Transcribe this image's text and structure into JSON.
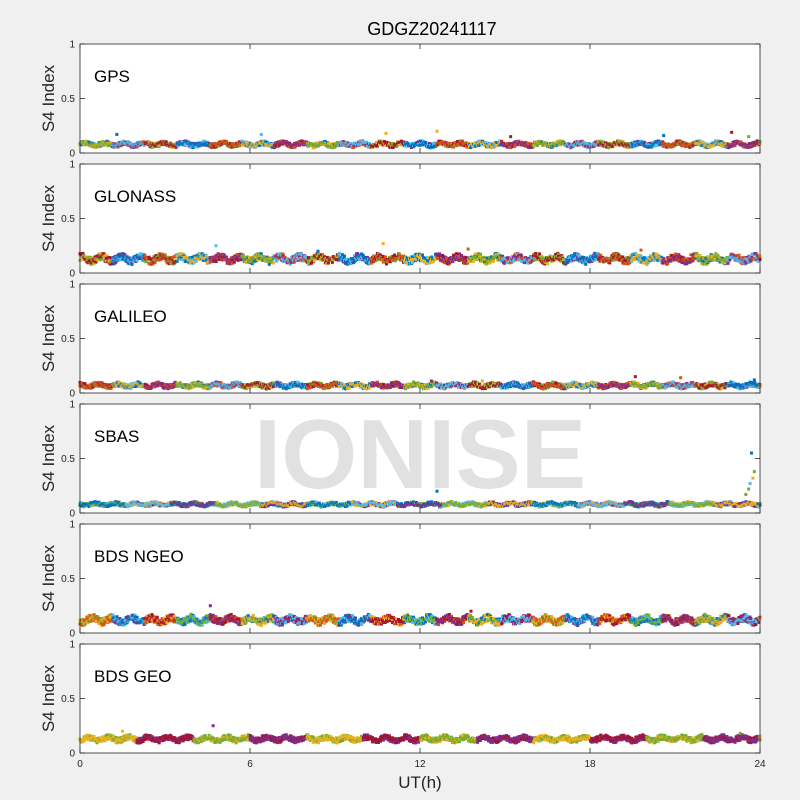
{
  "figure": {
    "title": "GDGZ20241117",
    "xlabel": "UT(h)",
    "watermark": "IONISE"
  },
  "chart_data": [
    {
      "type": "scatter",
      "panel": "GPS",
      "ylabel": "S4 Index",
      "xlim": [
        0,
        24
      ],
      "ylim": [
        0,
        1
      ],
      "xticks": [
        0,
        6,
        12,
        18,
        24
      ],
      "yticks": [
        0,
        0.5,
        1
      ],
      "grid": false,
      "baseline": 0.08,
      "spread": 0.025,
      "series_colors": [
        "#0072BD",
        "#D95319",
        "#EDB120",
        "#7E2F8E",
        "#77AC30",
        "#4DBEEE",
        "#A2142F"
      ],
      "outliers": [
        [
          1.3,
          0.17
        ],
        [
          6.4,
          0.17
        ],
        [
          10.8,
          0.18
        ],
        [
          12.6,
          0.2
        ],
        [
          15.2,
          0.15
        ],
        [
          20.6,
          0.16
        ],
        [
          23.0,
          0.19
        ],
        [
          23.6,
          0.15
        ]
      ]
    },
    {
      "type": "scatter",
      "panel": "GLONASS",
      "ylabel": "S4 Index",
      "xlim": [
        0,
        24
      ],
      "ylim": [
        0,
        1
      ],
      "xticks": [
        0,
        6,
        12,
        18,
        24
      ],
      "yticks": [
        0,
        0.5,
        1
      ],
      "grid": false,
      "baseline": 0.13,
      "spread": 0.04,
      "series_colors": [
        "#0072BD",
        "#D95319",
        "#EDB120",
        "#7E2F8E",
        "#77AC30",
        "#4DBEEE",
        "#A2142F"
      ],
      "outliers": [
        [
          4.8,
          0.25
        ],
        [
          10.7,
          0.27
        ],
        [
          13.7,
          0.22
        ],
        [
          8.4,
          0.2
        ],
        [
          19.8,
          0.21
        ]
      ]
    },
    {
      "type": "scatter",
      "panel": "GALILEO",
      "ylabel": "S4 Index",
      "xlim": [
        0,
        24
      ],
      "ylim": [
        0,
        1
      ],
      "xticks": [
        0,
        6,
        12,
        18,
        24
      ],
      "yticks": [
        0,
        0.5,
        1
      ],
      "grid": false,
      "baseline": 0.07,
      "spread": 0.025,
      "series_colors": [
        "#0072BD",
        "#D95319",
        "#EDB120",
        "#7E2F8E",
        "#77AC30",
        "#4DBEEE",
        "#A2142F"
      ],
      "outliers": [
        [
          19.6,
          0.15
        ],
        [
          21.2,
          0.14
        ],
        [
          23.8,
          0.12
        ],
        [
          12.4,
          0.11
        ],
        [
          14.2,
          0.11
        ]
      ]
    },
    {
      "type": "scatter",
      "panel": "SBAS",
      "ylabel": "S4 Index",
      "xlim": [
        0,
        24
      ],
      "ylim": [
        0,
        1
      ],
      "xticks": [
        0,
        6,
        12,
        18,
        24
      ],
      "yticks": [
        0,
        0.5,
        1
      ],
      "grid": false,
      "baseline": 0.08,
      "spread": 0.02,
      "series_colors": [
        "#0072BD",
        "#4DBEEE",
        "#7E2F8E",
        "#77AC30",
        "#EDB120"
      ],
      "outliers": [
        [
          12.6,
          0.2
        ],
        [
          23.7,
          0.55
        ],
        [
          23.8,
          0.38
        ],
        [
          23.75,
          0.32
        ],
        [
          23.6,
          0.22
        ],
        [
          23.5,
          0.17
        ],
        [
          23.65,
          0.27
        ]
      ]
    },
    {
      "type": "scatter",
      "panel": "BDS NGEO",
      "ylabel": "S4 Index",
      "xlim": [
        0,
        24
      ],
      "ylim": [
        0,
        1
      ],
      "xticks": [
        0,
        6,
        12,
        18,
        24
      ],
      "yticks": [
        0,
        0.5,
        1
      ],
      "grid": false,
      "baseline": 0.12,
      "spread": 0.04,
      "series_colors": [
        "#A2142F",
        "#77AC30",
        "#7E2F8E",
        "#EDB120",
        "#4DBEEE",
        "#D95319",
        "#0072BD"
      ],
      "outliers": [
        [
          4.6,
          0.25
        ],
        [
          13.8,
          0.2
        ],
        [
          19.4,
          0.16
        ]
      ]
    },
    {
      "type": "scatter",
      "panel": "BDS GEO",
      "ylabel": "S4 Index",
      "xlim": [
        0,
        24
      ],
      "ylim": [
        0,
        1
      ],
      "xticks": [
        0,
        6,
        12,
        18,
        24
      ],
      "yticks": [
        0,
        0.5,
        1
      ],
      "grid": false,
      "baseline": 0.13,
      "spread": 0.03,
      "series_colors": [
        "#77AC30",
        "#7E2F8E",
        "#EDB120",
        "#A2142F"
      ],
      "outliers": [
        [
          4.7,
          0.25
        ],
        [
          1.5,
          0.2
        ],
        [
          23.3,
          0.18
        ]
      ]
    }
  ]
}
